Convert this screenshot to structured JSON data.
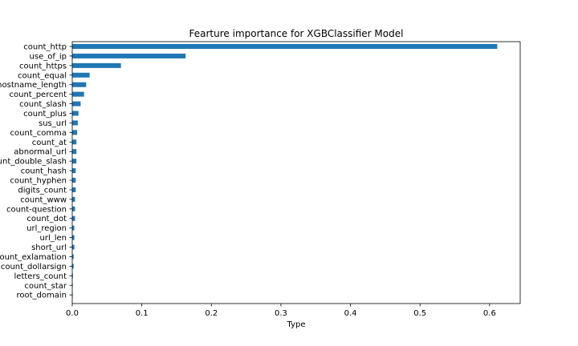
{
  "chart_data": {
    "type": "bar",
    "orientation": "horizontal",
    "title": "Fearture importance for XGBClassifier Model",
    "xlabel": "Type",
    "ylabel": "",
    "xlim": [
      0,
      0.644
    ],
    "xticks": [
      0.0,
      0.1,
      0.2,
      0.3,
      0.4,
      0.5,
      0.6
    ],
    "xtick_labels": [
      "0.0",
      "0.1",
      "0.2",
      "0.3",
      "0.4",
      "0.5",
      "0.6"
    ],
    "grid": false,
    "legend": "none",
    "bar_color": "#1f77b4",
    "categories": [
      "count_http",
      "use_of_ip",
      "count_https",
      "count_equal",
      "hostname_length",
      "count_percent",
      "count_slash",
      "count_plus",
      "sus_url",
      "count_comma",
      "count_at",
      "abnormal_url",
      "count_double_slash",
      "count_hash",
      "count_hyphen",
      "digits_count",
      "count_www",
      "count-question",
      "count_dot",
      "url_region",
      "url_len",
      "short_url",
      "count_exlamation",
      "count_dollarsign",
      "letters_count",
      "count_star",
      "root_domain"
    ],
    "values": [
      0.611,
      0.163,
      0.07,
      0.025,
      0.02,
      0.017,
      0.012,
      0.009,
      0.008,
      0.007,
      0.006,
      0.006,
      0.006,
      0.005,
      0.005,
      0.005,
      0.004,
      0.004,
      0.004,
      0.003,
      0.003,
      0.003,
      0.002,
      0.002,
      0.001,
      0.0005,
      0.0003
    ]
  }
}
